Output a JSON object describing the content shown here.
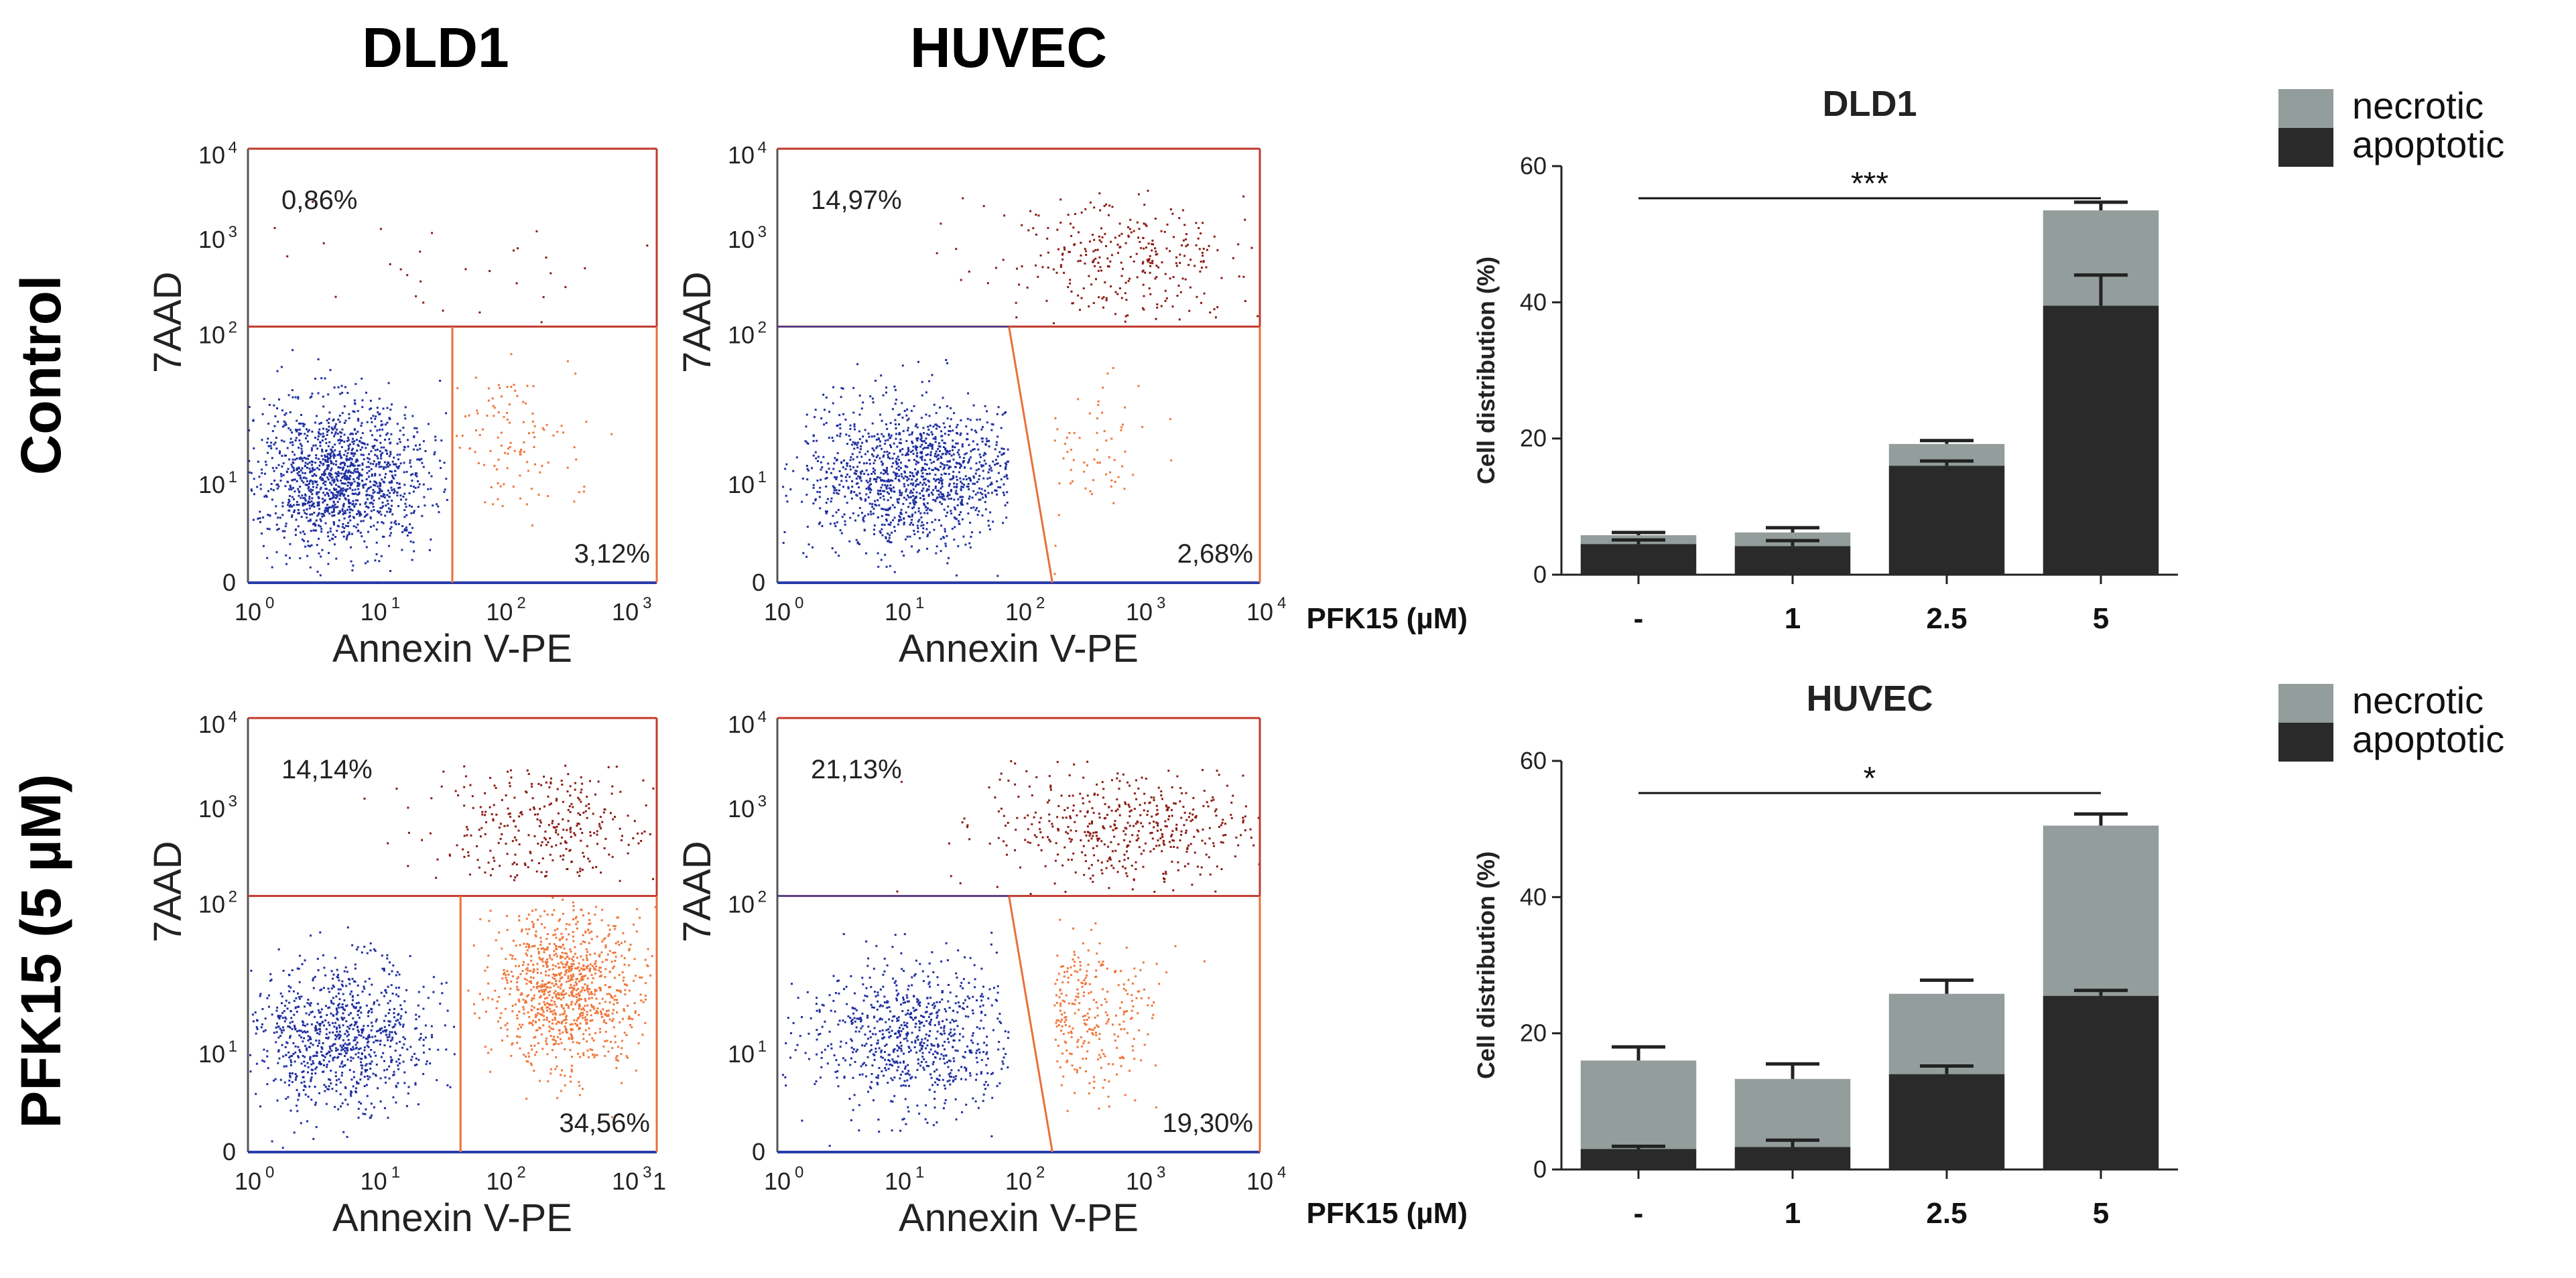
{
  "column_titles": [
    "DLD1",
    "HUVEC"
  ],
  "row_titles": [
    "Control",
    "PFK15 (5 µM)"
  ],
  "colors": {
    "viable": "#1f2fa0",
    "apoptotic_dots": "#f0763a",
    "necrotic_dots": "#8a1a12",
    "gate_line": "#c0392b",
    "gate_line_orange": "#e8703a",
    "necrotic_bar": "#939d9c",
    "apoptotic_bar": "#2a2a2a"
  },
  "flow_panels": [
    {
      "id": "dld1-control",
      "x_label": "Annexin V-PE",
      "y_label": "7AAD",
      "x_tick_bases": [
        "10",
        "10",
        "10",
        "10"
      ],
      "x_tick_exps": [
        "0",
        "1",
        "2",
        "3"
      ],
      "y_tick_bases": [
        "10",
        "10",
        "10",
        "10"
      ],
      "y_tick_exps": [
        "1",
        "2",
        "3",
        "4"
      ],
      "y_zero": "0",
      "upper_pct": "0,86%",
      "lower_pct": "3,12%",
      "gate_slanted": false,
      "counts": {
        "viable": 1400,
        "apoptotic": 120,
        "necrotic": 30
      }
    },
    {
      "id": "huvec-control",
      "x_label": "Annexin V-PE",
      "y_label": "7AAD",
      "x_tick_bases": [
        "10",
        "10",
        "10",
        "10",
        "10"
      ],
      "x_tick_exps": [
        "0",
        "1",
        "2",
        "3",
        "4"
      ],
      "y_tick_bases": [
        "10",
        "10",
        "10",
        "10"
      ],
      "y_tick_exps": [
        "1",
        "2",
        "3",
        "4"
      ],
      "y_zero": "0",
      "upper_pct": "14,97%",
      "lower_pct": "2,68%",
      "gate_slanted": true,
      "counts": {
        "viable": 1300,
        "apoptotic": 100,
        "necrotic": 320
      }
    },
    {
      "id": "dld1-pfk15",
      "x_label": "Annexin V-PE",
      "y_label": "7AAD",
      "x_tick_bases": [
        "10",
        "10",
        "10",
        "10"
      ],
      "x_tick_exps": [
        "0",
        "1",
        "2",
        "3"
      ],
      "x_tick_extra": "1",
      "y_tick_bases": [
        "10",
        "10",
        "10",
        "10"
      ],
      "y_tick_exps": [
        "1",
        "2",
        "3",
        "4"
      ],
      "y_zero": "0",
      "upper_pct": "14,14%",
      "lower_pct": "34,56%",
      "gate_slanted": false,
      "counts": {
        "viable": 900,
        "apoptotic": 1000,
        "necrotic": 320
      }
    },
    {
      "id": "huvec-pfk15",
      "x_label": "Annexin V-PE",
      "y_label": "7AAD",
      "x_tick_bases": [
        "10",
        "10",
        "10",
        "10",
        "10"
      ],
      "x_tick_exps": [
        "0",
        "1",
        "2",
        "3",
        "4"
      ],
      "y_tick_bases": [
        "10",
        "10",
        "10",
        "10"
      ],
      "y_tick_exps": [
        "1",
        "2",
        "3",
        "4"
      ],
      "y_zero": "0",
      "upper_pct": "21,13%",
      "lower_pct": "19,30%",
      "gate_slanted": true,
      "counts": {
        "viable": 800,
        "apoptotic": 420,
        "necrotic": 480
      }
    }
  ],
  "chart_data": [
    {
      "type": "bar",
      "stacked": true,
      "title": "DLD1",
      "ylabel": "Cell distribution (%)",
      "xlabel": "PFK15 (µM)",
      "categories": [
        "-",
        "1",
        "2.5",
        "5"
      ],
      "ylim": [
        0,
        60
      ],
      "yticks": [
        "0",
        "20",
        "40",
        "60"
      ],
      "series": [
        {
          "name": "apoptotic",
          "values": [
            4.5,
            4.2,
            16,
            39.5
          ],
          "errors": [
            0.6,
            0.8,
            0.7,
            4.5
          ]
        },
        {
          "name": "necrotic",
          "values": [
            1.3,
            2.0,
            3.2,
            14
          ],
          "errors": [
            0.4,
            0.7,
            0.5,
            1.2
          ]
        }
      ],
      "legend": [
        "necrotic",
        "apoptotic"
      ],
      "legend_position": "top-right",
      "significance": "***"
    },
    {
      "type": "bar",
      "stacked": true,
      "title": "HUVEC",
      "ylabel": "Cell distribution (%)",
      "xlabel": "PFK15 (µM)",
      "categories": [
        "-",
        "1",
        "2.5",
        "5"
      ],
      "ylim": [
        0,
        60
      ],
      "yticks": [
        "0",
        "20",
        "40",
        "60"
      ],
      "series": [
        {
          "name": "apoptotic",
          "values": [
            3,
            3.3,
            14,
            25.5
          ],
          "errors": [
            0.4,
            1.0,
            1.2,
            0.8
          ]
        },
        {
          "name": "necrotic",
          "values": [
            13,
            10,
            11.8,
            25
          ],
          "errors": [
            2.0,
            2.2,
            2.0,
            1.7
          ]
        }
      ],
      "legend": [
        "necrotic",
        "apoptotic"
      ],
      "legend_position": "top-right",
      "significance": "*"
    }
  ]
}
